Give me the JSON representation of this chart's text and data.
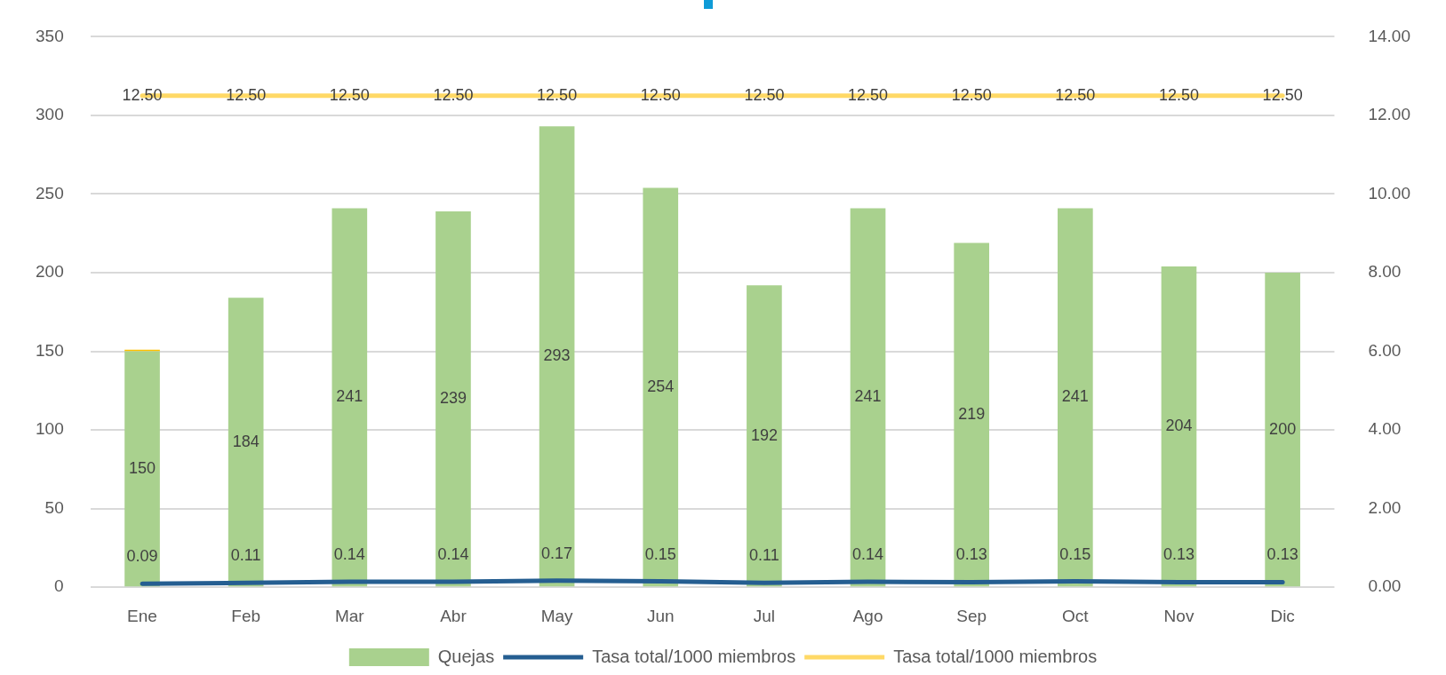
{
  "chart_data": {
    "type": "bar",
    "stacked": true,
    "categories": [
      "Ene",
      "Feb",
      "Mar",
      "Abr",
      "May",
      "Jun",
      "Jul",
      "Ago",
      "Sep",
      "Oct",
      "Nov",
      "Dic"
    ],
    "series": [
      {
        "name": "Quejas",
        "color": "#a9d18e",
        "values": [
          150,
          184,
          241,
          239,
          293,
          254,
          192,
          241,
          219,
          241,
          204,
          200
        ],
        "value_labels": [
          "150",
          "184",
          "241",
          "239",
          "293",
          "254",
          "192",
          "241",
          "219",
          "241",
          "204",
          "200"
        ]
      },
      {
        "color": "#ffc000",
        "values": [
          1,
          null,
          null,
          null,
          null,
          null,
          null,
          null,
          null,
          null,
          null,
          null
        ]
      },
      {
        "name": "Tasa total/1000 miembros",
        "type": "line",
        "axis": "y2",
        "color": "#255e91",
        "values": [
          0.09,
          0.11,
          0.14,
          0.14,
          0.17,
          0.15,
          0.11,
          0.14,
          0.13,
          0.15,
          0.13,
          0.13
        ],
        "value_labels": [
          "0.09",
          "0.11",
          "0.14",
          "0.14",
          "0.17",
          "0.15",
          "0.11",
          "0.14",
          "0.13",
          "0.15",
          "0.13",
          "0.13"
        ]
      },
      {
        "name": "Tasa total/1000 miembros",
        "type": "line",
        "axis": "y2",
        "color": "#ffd966",
        "values": [
          12.5,
          12.5,
          12.5,
          12.5,
          12.5,
          12.5,
          12.5,
          12.5,
          12.5,
          12.5,
          12.5,
          12.5
        ],
        "value_labels": [
          "12.50",
          "12.50",
          "12.50",
          "12.50",
          "12.50",
          "12.50",
          "12.50",
          "12.50",
          "12.50",
          "12.50",
          "12.50",
          "12.50"
        ]
      }
    ],
    "ylim": [
      0,
      350
    ],
    "yticks": [
      0,
      50,
      100,
      150,
      200,
      250,
      300,
      350
    ],
    "y2lim": [
      0,
      14
    ],
    "y2ticks": [
      {
        "value": 0,
        "label": "0.00"
      },
      {
        "value": 2,
        "label": "2.00"
      },
      {
        "value": 4,
        "label": "4.00"
      },
      {
        "value": 6,
        "label": "6.00"
      },
      {
        "value": 8,
        "label": "8.00"
      },
      {
        "value": 10,
        "label": "10.00"
      },
      {
        "value": 12,
        "label": "12.00"
      },
      {
        "value": 14,
        "label": "14.00"
      }
    ],
    "grid": "y",
    "legend": "bottom",
    "marker": "none"
  }
}
